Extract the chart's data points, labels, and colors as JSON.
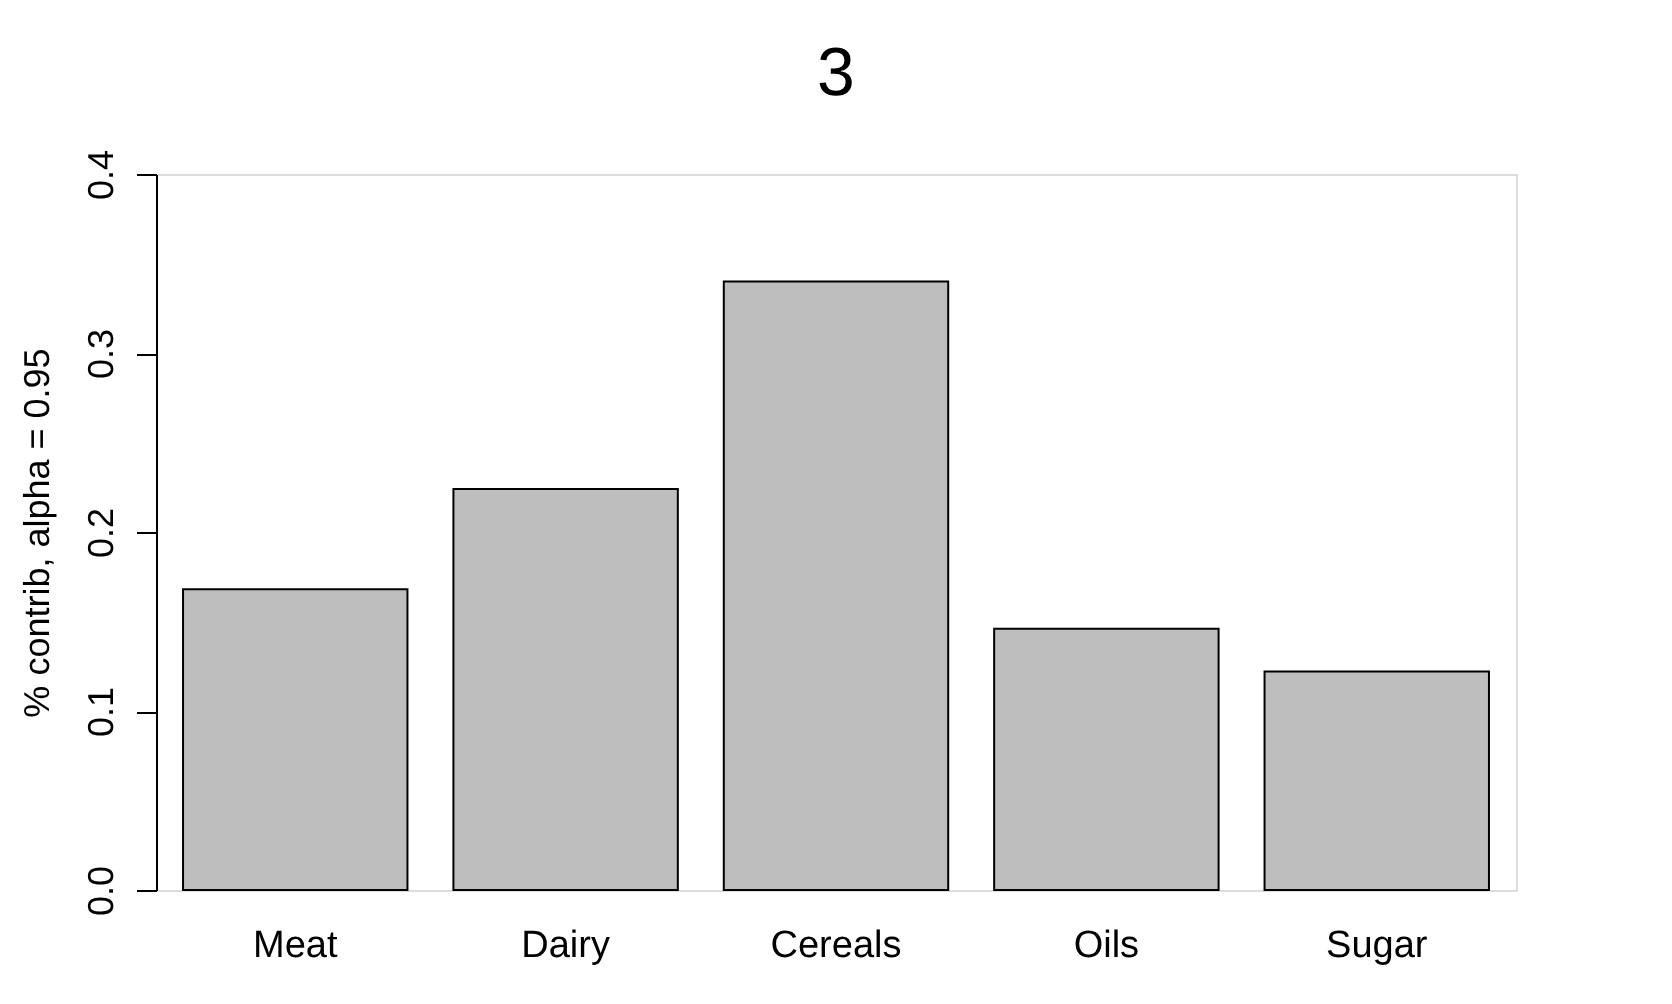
{
  "chart_data": {
    "type": "bar",
    "title": "3",
    "ylabel": "% contrib, alpha = 0.95",
    "categories": [
      "Meat",
      "Dairy",
      "Cereals",
      "Oils",
      "Sugar"
    ],
    "values": [
      0.168,
      0.224,
      0.34,
      0.146,
      0.122
    ],
    "color": "#bebebe",
    "ylim": [
      0,
      0.4
    ],
    "yticks": [
      {
        "value": 0,
        "label": "0.0"
      },
      {
        "value": 0.1,
        "label": "0.1"
      },
      {
        "value": 0.2,
        "label": "0.2"
      },
      {
        "value": 0.3,
        "label": "0.3"
      },
      {
        "value": 0.4,
        "label": "0.4"
      }
    ],
    "grid": false
  }
}
